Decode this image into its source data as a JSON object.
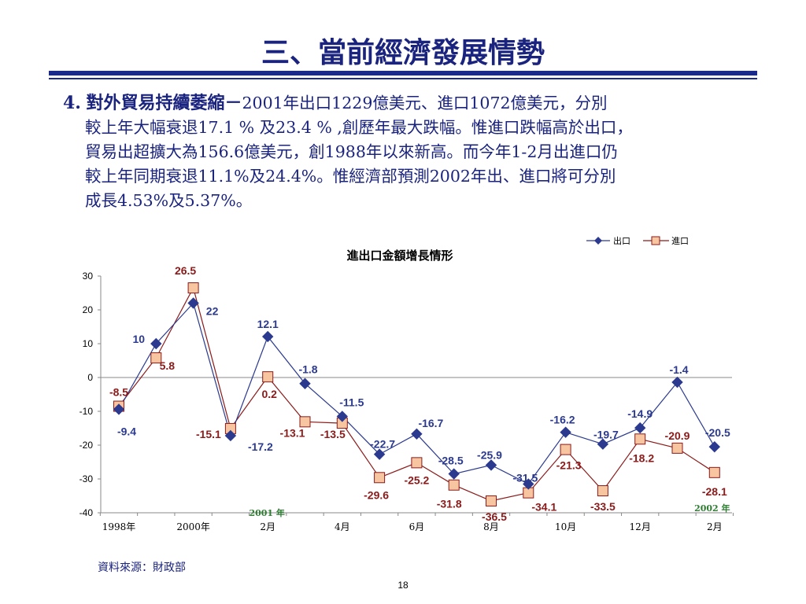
{
  "slide": {
    "title": "三、當前經濟發展情勢",
    "section_number": "4.",
    "section_heading": "對外貿易持續萎縮－",
    "lines": [
      "2001年出口1229億美元、進口1072億美元，分別",
      "較上年大幅衰退17.1 % 及23.4 % ,創歷年最大跌幅。惟進口跌幅高於出口，",
      "貿易出超擴大為156.6億美元，創1988年以來新高。而今年1-2月出進口仍",
      "較上年同期衰退11.1%及24.4%。惟經濟部預測2002年出、進口將可分別",
      "成長4.53%及5.37%。"
    ],
    "source": "資料來源：財政部",
    "page_number": "18"
  },
  "colors": {
    "title": "#1a237e",
    "export_series": "#2b3a8f",
    "import_series": "#8b1a1a",
    "import_marker_fill": "#f7c59f",
    "rule": "#1a2a8a"
  },
  "chart_data": {
    "type": "line",
    "title": "進出口金額增長情形",
    "categories": [
      "1998年",
      "",
      "2000年",
      "",
      "2月",
      "",
      "4月",
      "",
      "6月",
      "",
      "8月",
      "",
      "10月",
      "",
      "12月",
      "",
      "2月"
    ],
    "x_tick_labels": [
      "1998年",
      "2000年",
      "2月",
      "4月",
      "6月",
      "8月",
      "10月",
      "12月",
      "2月"
    ],
    "year_annotations": [
      "2001 年",
      "2002 年"
    ],
    "ylim": [
      -40,
      30
    ],
    "yticks": [
      30,
      20,
      10,
      0,
      -10,
      -20,
      -30,
      -40
    ],
    "grid": false,
    "legend_position": "top-right",
    "series": [
      {
        "name": "出口",
        "marker": "diamond",
        "values": [
          -9.4,
          10,
          22,
          -17.2,
          12.1,
          -1.8,
          -11.5,
          -22.7,
          -16.7,
          -28.5,
          -25.9,
          -31.5,
          -16.2,
          -19.7,
          -14.9,
          -1.4,
          -20.5
        ],
        "labels": [
          "-9.4",
          "10",
          "22",
          "-17.2",
          "12.1",
          "-1.8",
          "-11.5",
          "-22.7",
          "-16.7",
          "-28.5",
          "-25.9",
          "-31.5",
          "-16.2",
          "-19.7",
          "-14.9",
          "-1.4",
          "-20.5"
        ]
      },
      {
        "name": "進口",
        "marker": "square",
        "values": [
          -8.5,
          5.8,
          26.5,
          -15.1,
          0.2,
          -13.1,
          -13.5,
          -29.6,
          -25.2,
          -31.8,
          -36.5,
          -34.1,
          -21.3,
          -33.5,
          -18.2,
          -20.9,
          -28.1
        ],
        "labels": [
          "-8.5",
          "5.8",
          "26.5",
          "-15.1",
          "0.2",
          "-13.1",
          "-13.5",
          "-29.6",
          "-25.2",
          "-31.8",
          "-36.5",
          "-34.1",
          "-21.3",
          "-33.5",
          "-18.2",
          "-20.9",
          "-28.1"
        ]
      }
    ]
  }
}
